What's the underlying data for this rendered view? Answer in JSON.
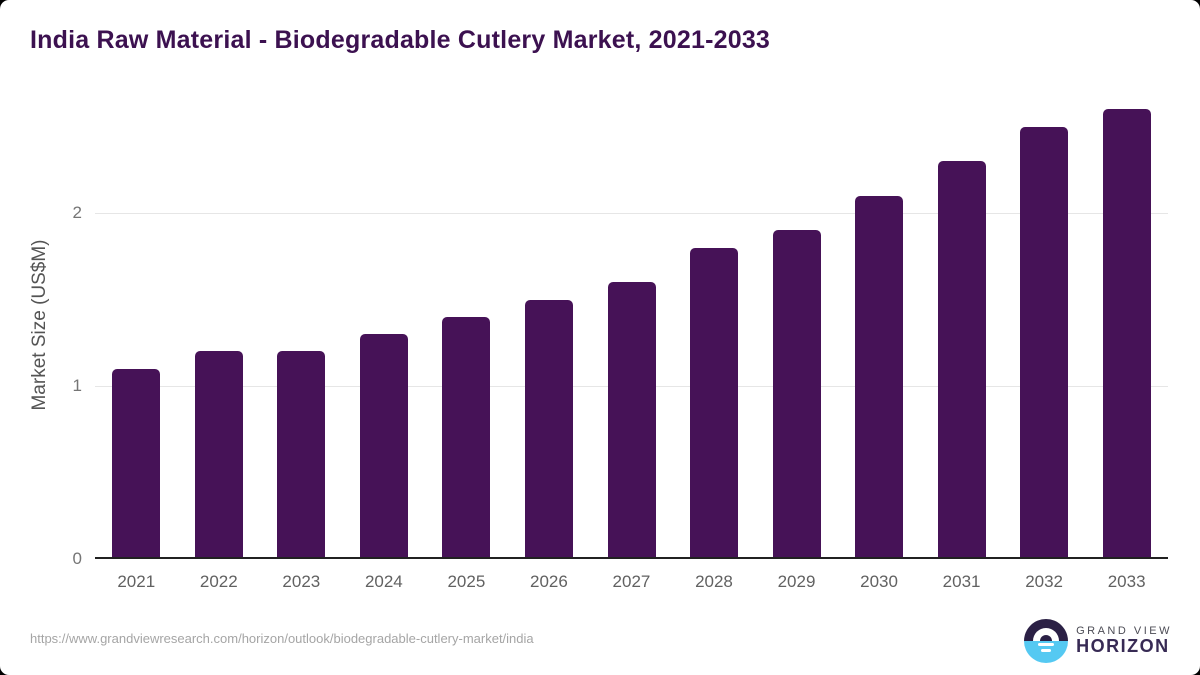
{
  "page": {
    "title": "India Raw Material - Biodegradable Cutlery Market, 2021-2033",
    "source_url": "https://www.grandviewresearch.com/horizon/outlook/biodegradable-cutlery-market/india"
  },
  "chart_data": {
    "type": "bar",
    "title": "India Raw Material - Biodegradable Cutlery Market, 2021-2033",
    "categories": [
      "2021",
      "2022",
      "2023",
      "2024",
      "2025",
      "2026",
      "2027",
      "2028",
      "2029",
      "2030",
      "2031",
      "2032",
      "2033"
    ],
    "values": [
      1.1,
      1.2,
      1.2,
      1.3,
      1.4,
      1.5,
      1.6,
      1.8,
      1.9,
      2.1,
      2.3,
      2.5,
      2.6
    ],
    "xlabel": "",
    "ylabel": "Market Size (US$M)",
    "yticks": [
      0,
      1,
      2
    ],
    "ylim": [
      0,
      2.66
    ],
    "grid": true,
    "legend": "none",
    "bar_color": "#461257"
  },
  "logo": {
    "icon": "horizon-sun-icon",
    "brand_line1": "GRAND VIEW",
    "brand_line2": "HORIZON",
    "icon_top_color": "#2B2045",
    "icon_bottom_color": "#55C9F2"
  },
  "colors": {
    "title_text": "#3C1150",
    "bar": "#461257",
    "gridline": "#E6E6E6",
    "axis_line": "#212121",
    "tick_label": "#757575",
    "axis_title": "#545454",
    "url_text": "#A5A5A5"
  }
}
